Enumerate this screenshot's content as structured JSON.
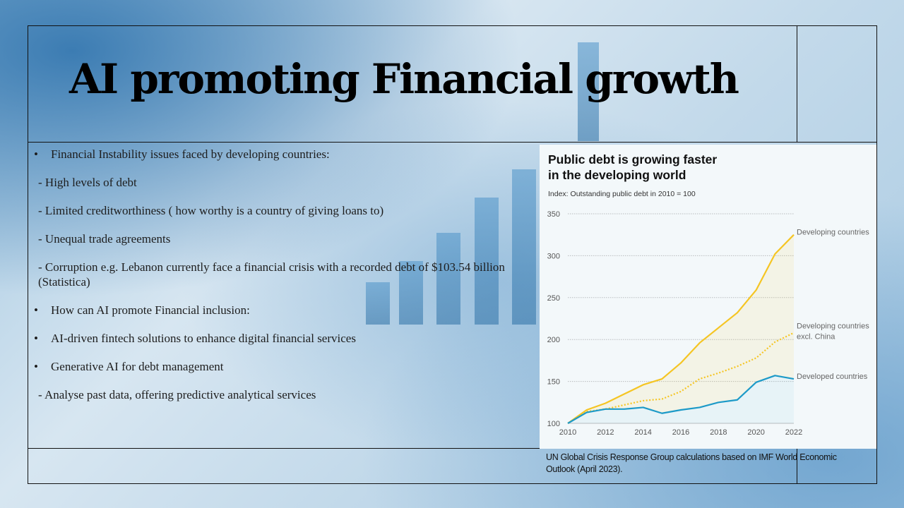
{
  "slide": {
    "title": "AI promoting Financial growth",
    "bullets": [
      {
        "type": "bullet",
        "marker": "•",
        "text": "Financial Instability issues faced by developing countries:"
      },
      {
        "type": "sub",
        "text": " - High levels of debt"
      },
      {
        "type": "sub",
        "text": "- Limited creditworthiness ( how worthy is a country of giving loans to)"
      },
      {
        "type": "sub",
        "text": "- Unequal trade agreements"
      },
      {
        "type": "sub",
        "text": " - Corruption e.g. Lebanon currently face a financial crisis with a recorded debt of $103.54 billion (Statistica)"
      },
      {
        "type": "bullet",
        "marker": "•",
        "text": "How can AI promote Financial inclusion:"
      },
      {
        "type": "bullet",
        "marker": "•",
        "text": "AI-driven fintech solutions to enhance digital financial services"
      },
      {
        "type": "bullet",
        "marker": "•",
        "text": "Generative AI for debt management"
      },
      {
        "type": "sub",
        "text": " - Analyse past data, offering predictive analytical services"
      }
    ],
    "source": "UN Global Crisis Response Group calculations based on IMF World Economic Outlook (April 2023)."
  },
  "colors": {
    "developing": "#f5c523",
    "developed": "#1d9ac8",
    "grid": "#b9bcbf",
    "text": "#222222"
  },
  "chart_data": {
    "type": "line",
    "title_lines": [
      "Public debt is growing faster",
      "in the developing world"
    ],
    "subtitle": "Index: Outstanding public debt in 2010 = 100",
    "xlabel": "",
    "ylabel": "",
    "x": [
      2010,
      2011,
      2012,
      2013,
      2014,
      2015,
      2016,
      2017,
      2018,
      2019,
      2020,
      2021,
      2022
    ],
    "xticks": [
      "2010",
      "2012",
      "2014",
      "2016",
      "2018",
      "2020",
      "2022"
    ],
    "yticks": [
      "100",
      "150",
      "200",
      "250",
      "300",
      "350"
    ],
    "xlim": [
      2010,
      2022
    ],
    "ylim": [
      100,
      350
    ],
    "grid": true,
    "series": [
      {
        "name": "Developing countries",
        "style": "solid",
        "color": "#f5c523",
        "values": [
          100,
          116,
          124,
          135,
          146,
          153,
          172,
          196,
          214,
          232,
          259,
          302,
          325
        ]
      },
      {
        "name": "Developing countries excl. China",
        "label_lines": [
          "Developing countries",
          "excl. China"
        ],
        "style": "dotted",
        "color": "#f5c523",
        "values": [
          100,
          114,
          117,
          122,
          127,
          129,
          138,
          153,
          160,
          168,
          178,
          197,
          208
        ]
      },
      {
        "name": "Developed countries",
        "style": "solid",
        "color": "#1d9ac8",
        "values": [
          100,
          113,
          117,
          117,
          119,
          112,
          116,
          119,
          125,
          128,
          149,
          157,
          153
        ]
      }
    ]
  }
}
